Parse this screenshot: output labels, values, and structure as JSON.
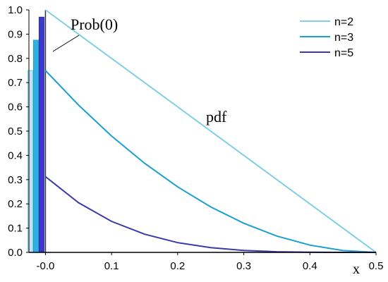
{
  "chart_data": {
    "type": "line",
    "xlabel": "x",
    "ylabel": "",
    "xlim": [
      -0.025,
      0.5
    ],
    "ylim": [
      0.0,
      1.0
    ],
    "x_ticks": [
      -0.0,
      0.1,
      0.2,
      0.3,
      0.4,
      0.5
    ],
    "x_tick_labels": [
      "-0.0",
      "0.1",
      "0.2",
      "0.3",
      "0.4",
      "0.5"
    ],
    "y_ticks": [
      0.0,
      0.1,
      0.2,
      0.3,
      0.4,
      0.5,
      0.6,
      0.7,
      0.8,
      0.9,
      1.0
    ],
    "y_tick_labels": [
      "0.0",
      "0.1",
      "0.2",
      "0.3",
      "0.4",
      "0.5",
      "0.6",
      "0.7",
      "0.8",
      "0.9",
      "1.0"
    ],
    "grid": false,
    "legend_position": "top-right",
    "series": [
      {
        "name": "n=2",
        "color": "#7fcfe6",
        "x": [
          0,
          0.1,
          0.2,
          0.3,
          0.4,
          0.5
        ],
        "y": [
          1.0,
          0.8,
          0.6,
          0.4,
          0.2,
          0.0
        ]
      },
      {
        "name": "n=3",
        "color": "#1aa0cf",
        "x": [
          0,
          0.05,
          0.1,
          0.15,
          0.2,
          0.25,
          0.3,
          0.35,
          0.4,
          0.45,
          0.5
        ],
        "y": [
          0.75,
          0.6075,
          0.48,
          0.3675,
          0.27,
          0.1875,
          0.12,
          0.0675,
          0.03,
          0.0075,
          0.0
        ]
      },
      {
        "name": "n=5",
        "color": "#3a3aa8",
        "x": [
          0,
          0.05,
          0.1,
          0.15,
          0.2,
          0.25,
          0.3,
          0.35,
          0.4,
          0.45,
          0.5
        ],
        "y": [
          0.3125,
          0.205,
          0.128,
          0.075,
          0.04,
          0.0195,
          0.008,
          0.0025,
          0.0005,
          0.0,
          0.0
        ]
      }
    ],
    "prob0_bars": [
      {
        "series": "n=2",
        "value": 0.75,
        "color": "#bfe3f2",
        "stroke": "#7fcfe6"
      },
      {
        "series": "n=3",
        "value": 0.875,
        "color": "#2fb0e0",
        "stroke": "#1aa0cf"
      },
      {
        "series": "n=5",
        "value": 0.97,
        "color": "#3a3ad0",
        "stroke": "#2a2aa8"
      }
    ],
    "annotations": [
      {
        "text": "Prob(0)"
      },
      {
        "text": "pdf"
      }
    ]
  }
}
